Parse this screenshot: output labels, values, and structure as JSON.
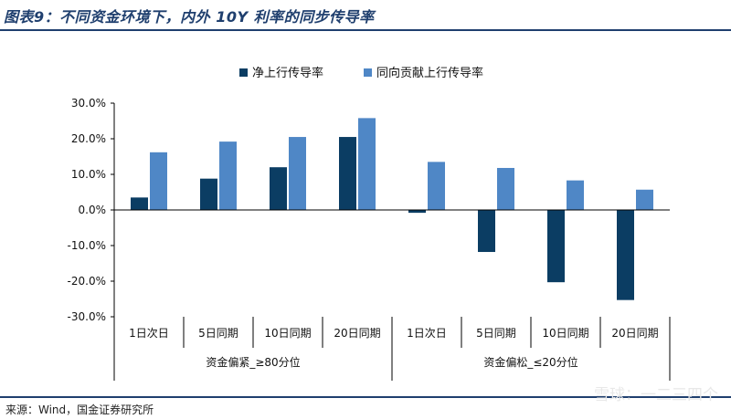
{
  "header": {
    "title": "图表9：不同资金环境下，内外 10Y 利率的同步传导率"
  },
  "footer": {
    "source": "来源：Wind，国金证券研究所"
  },
  "watermark": {
    "text": "雪球：一二三四个"
  },
  "chart_data": {
    "type": "bar",
    "title": "",
    "xlabel": "",
    "ylabel": "",
    "ylim": [
      -0.3,
      0.3
    ],
    "yticks": [
      0.3,
      0.2,
      0.1,
      0.0,
      -0.1,
      -0.2,
      -0.3
    ],
    "ytick_labels": [
      "30.0%",
      "20.0%",
      "10.0%",
      "0.0%",
      "-10.0%",
      "-20.0%",
      "-30.0%"
    ],
    "categories": [
      "1日次日",
      "5日同期",
      "10日同期",
      "20日同期",
      "1日次日",
      "5日同期",
      "10日同期",
      "20日同期"
    ],
    "groups": [
      {
        "label": "资金偏紧_≥80分位",
        "span": 4
      },
      {
        "label": "资金偏松_≤20分位",
        "span": 4
      }
    ],
    "legend_position": "top-center",
    "grid": false,
    "series": [
      {
        "name": "净上行传导率",
        "color": "#0b3d63",
        "values": [
          0.035,
          0.088,
          0.12,
          0.205,
          -0.008,
          -0.118,
          -0.203,
          -0.253
        ]
      },
      {
        "name": "同向贡献上行传导率",
        "color": "#4f87c6",
        "values": [
          0.162,
          0.192,
          0.205,
          0.258,
          0.135,
          0.118,
          0.083,
          0.057
        ]
      }
    ]
  }
}
